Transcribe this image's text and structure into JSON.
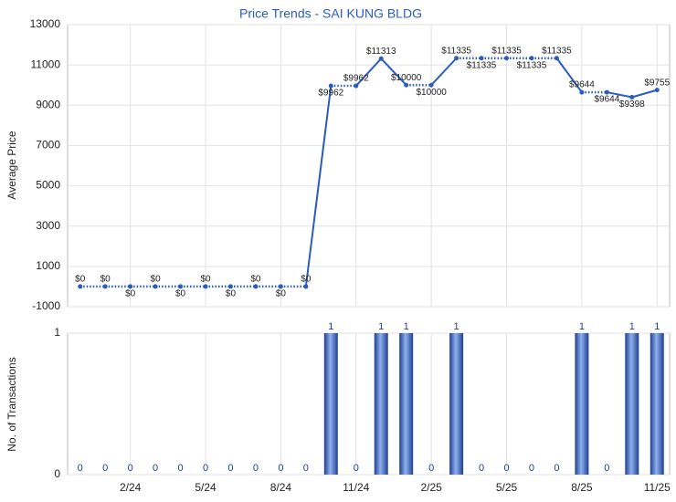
{
  "chart_data": [
    {
      "type": "line",
      "title": "Price Trends - SAI KUNG BLDG",
      "y_label": "Average Price",
      "color": "#2a5cc0",
      "values": [
        0,
        0,
        0,
        0,
        0,
        0,
        0,
        0,
        0,
        0,
        9962,
        9962,
        11313,
        10000,
        10000,
        11335,
        11335,
        11335,
        11335,
        11335,
        9644,
        9644,
        9398,
        9755
      ],
      "value_labels": [
        "$0",
        "$0",
        "$0",
        "$0",
        "$0",
        "$0",
        "$0",
        "$0",
        "$0",
        "$0",
        "$9962",
        "$9962",
        "$11313",
        "$10000",
        "$10000",
        "$11335",
        "$11335",
        "$11335",
        "$11335",
        "$11335",
        "$9644",
        "$9644",
        "$9398",
        "$9755"
      ],
      "ylim": [
        -1000,
        13000
      ],
      "yticks": [
        -1000,
        1000,
        3000,
        5000,
        7000,
        9000,
        11000,
        13000
      ],
      "grid": true
    },
    {
      "type": "bar",
      "y_label": "No. of Transactions",
      "color": "#3a66c4",
      "categories": [
        null,
        null,
        "2/24",
        null,
        null,
        "5/24",
        null,
        null,
        "8/24",
        null,
        null,
        "11/24",
        null,
        null,
        "2/25",
        null,
        null,
        "5/25",
        null,
        null,
        "8/25",
        null,
        null,
        "11/25"
      ],
      "values": [
        0,
        0,
        0,
        0,
        0,
        0,
        0,
        0,
        0,
        0,
        1,
        0,
        1,
        1,
        0,
        1,
        0,
        0,
        0,
        0,
        1,
        0,
        1,
        1
      ],
      "ylim": [
        0,
        1
      ],
      "yticks": [
        0,
        1
      ],
      "grid": true
    }
  ]
}
